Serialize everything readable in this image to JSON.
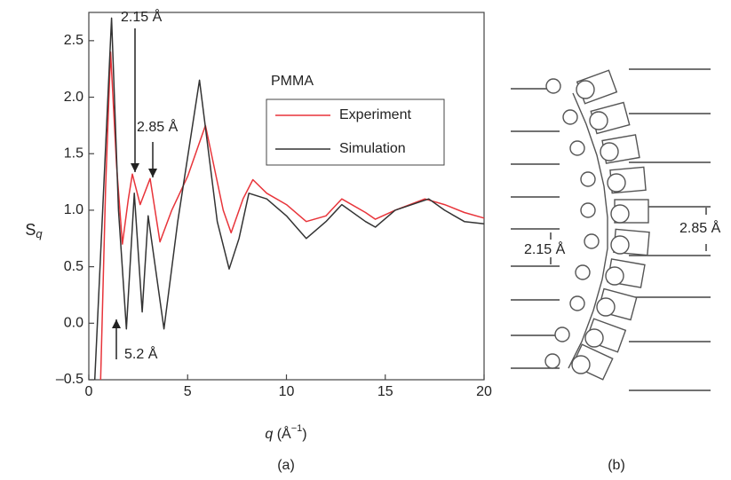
{
  "chart_data": {
    "type": "line",
    "ylabel": "S",
    "ylabel_sub": "q",
    "xlabel_parts": [
      "q",
      " (Å",
      "−1",
      ")"
    ],
    "xlim": [
      0,
      20
    ],
    "xticks": [
      0,
      5,
      10,
      15,
      20
    ],
    "ylim": [
      -0.5,
      2.75
    ],
    "yticks": [
      {
        "value": -0.5,
        "label": "–0.5"
      },
      {
        "value": 0,
        "label": "0.0"
      },
      0.5,
      {
        "value": 1,
        "label": "1.0"
      },
      1.5,
      {
        "value": 2,
        "label": "2.0"
      },
      2.5
    ],
    "legend_title": "PMMA",
    "annotations": [
      "2.15 Å",
      "2.85 Å",
      "5.2 Å"
    ],
    "series": [
      {
        "name": "Experiment",
        "color": "#e8343a",
        "x": [
          0.6,
          0.85,
          1.1,
          1.4,
          1.7,
          2.0,
          2.2,
          2.6,
          3.1,
          3.6,
          4.2,
          5.0,
          5.9,
          6.8,
          7.2,
          7.8,
          8.3,
          9.0,
          10.0,
          11.0,
          12.0,
          12.8,
          14.0,
          14.5,
          15.5,
          17.0,
          18.0,
          19.0,
          20.0
        ],
        "values": [
          -0.5,
          1.2,
          2.4,
          1.4,
          0.7,
          1.1,
          1.32,
          1.05,
          1.28,
          0.72,
          1.0,
          1.3,
          1.75,
          1.0,
          0.8,
          1.1,
          1.27,
          1.15,
          1.05,
          0.9,
          0.95,
          1.1,
          0.98,
          0.92,
          1.0,
          1.1,
          1.05,
          0.98,
          0.93
        ]
      },
      {
        "name": "Simulation",
        "color": "#333333",
        "x": [
          0.3,
          0.7,
          1.15,
          1.5,
          1.9,
          2.3,
          2.7,
          3.0,
          3.8,
          4.5,
          5.6,
          6.5,
          7.1,
          7.6,
          8.1,
          9.0,
          10.0,
          11.0,
          12.0,
          12.8,
          14.0,
          14.5,
          15.5,
          17.2,
          18.0,
          19.0,
          20.0
        ],
        "values": [
          -0.5,
          1.0,
          2.7,
          1.0,
          -0.05,
          1.15,
          0.1,
          0.95,
          -0.05,
          0.9,
          2.15,
          0.9,
          0.48,
          0.75,
          1.15,
          1.1,
          0.95,
          0.75,
          0.9,
          1.05,
          0.9,
          0.85,
          1.0,
          1.1,
          1.0,
          0.9,
          0.88
        ]
      }
    ]
  },
  "panel_labels": [
    "(a)",
    "(b)"
  ],
  "diagram": {
    "labels": [
      "2.15 Å",
      "2.85 Å"
    ]
  }
}
